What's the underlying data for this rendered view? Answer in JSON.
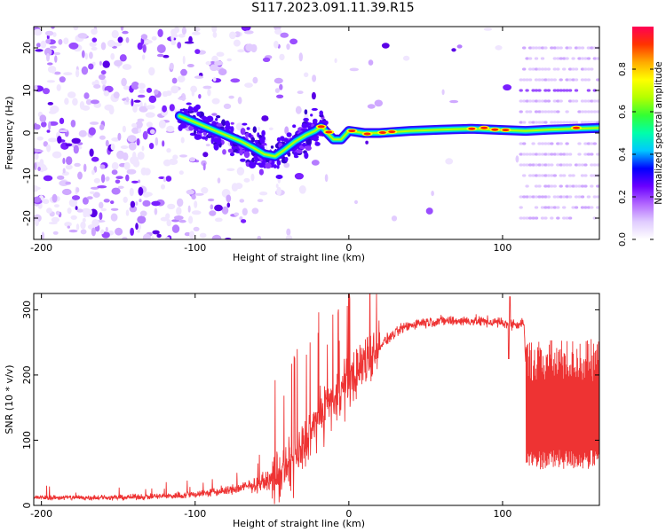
{
  "figure_title": "S117.2023.091.11.39.R15",
  "colors": {
    "axis": "#000000",
    "snr_line": "#ee3333",
    "colormap": [
      "#ffffff",
      "#e0ccff",
      "#b266ff",
      "#6a00ff",
      "#0000ff",
      "#00c8ff",
      "#00ffaa",
      "#33ff33",
      "#b4ff00",
      "#ffff00",
      "#ffaa00",
      "#ff3300",
      "#ff0055"
    ]
  },
  "chart_data": [
    {
      "type": "heatmap",
      "title": "S117.2023.091.11.39.R15",
      "xlabel": "Height of straight line (km)",
      "ylabel": "Frequency (Hz)",
      "xlim": [
        -205,
        163
      ],
      "ylim": [
        -25,
        25
      ],
      "xticks": [
        -200,
        -100,
        0,
        100
      ],
      "yticks": [
        -20,
        -10,
        0,
        10,
        20
      ],
      "colorbar": {
        "label": "Normalized spectral amplitude",
        "range": [
          0,
          1
        ],
        "ticks": [
          "0.0",
          "0.2",
          "0.4",
          "0.6",
          "0.8"
        ]
      },
      "ridge": {
        "x": [
          -110,
          -100,
          -90,
          -80,
          -70,
          -62,
          -55,
          -48,
          -42,
          -35,
          -28,
          -22,
          -18,
          -14,
          -10,
          -5,
          0,
          10,
          20,
          40,
          60,
          80,
          100,
          115,
          130,
          163
        ],
        "y": [
          4,
          2.5,
          1,
          -0.5,
          -2,
          -3.5,
          -5,
          -5.5,
          -4,
          -2,
          -0.5,
          0.5,
          1.5,
          0,
          -1.5,
          -1.5,
          0.5,
          0,
          0,
          0.5,
          0.8,
          1,
          0.7,
          0.5,
          0.8,
          1.2
        ]
      },
      "grid": false
    },
    {
      "type": "line",
      "xlabel": "Height of straight line (km)",
      "ylabel": "SNR (10 * v/v)",
      "xlim": [
        -205,
        163
      ],
      "ylim": [
        0,
        325
      ],
      "xticks": [
        -200,
        -100,
        0,
        100
      ],
      "yticks": [
        0,
        100,
        200,
        300
      ],
      "envelope": {
        "x": [
          -205,
          -150,
          -110,
          -80,
          -60,
          -45,
          -35,
          -25,
          -15,
          -5,
          5,
          15,
          25,
          35,
          45,
          60,
          80,
          100,
          110,
          114,
          116,
          163
        ],
        "y": [
          12,
          12,
          15,
          22,
          32,
          45,
          70,
          110,
          150,
          175,
          205,
          235,
          255,
          272,
          280,
          283,
          283,
          280,
          278,
          280,
          150,
          150
        ]
      },
      "grid": false
    }
  ]
}
